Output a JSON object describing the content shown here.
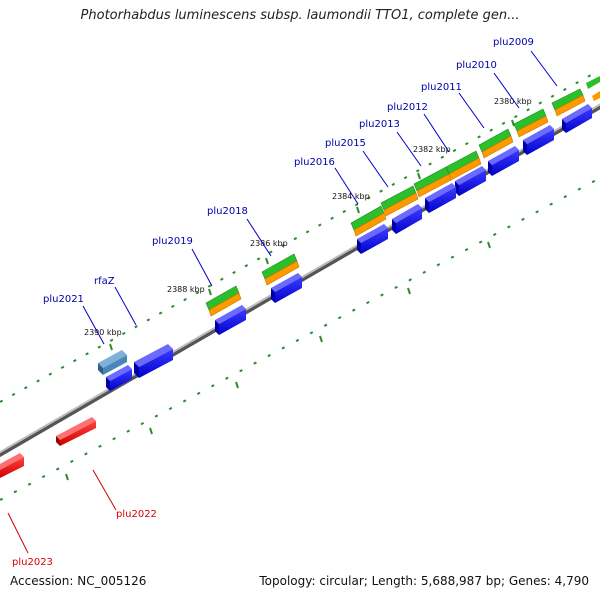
{
  "title": "Photorhabdus luminescens subsp. laumondii TTO1, complete gen...",
  "footer": {
    "accession": "Accession: NC_005126",
    "summary": "Topology: circular; Length: 5,688,987 bp; Genes: 4,790"
  },
  "colors": {
    "backbone": "#8a8a8a",
    "cds": "#0000ee",
    "gene_green": "#33cc33",
    "gene_orange": "#ff9900",
    "rna_steelblue": "#4a86b8",
    "reverse_red": "#ee0000",
    "forward_label": "#0000aa",
    "reverse_label": "#dd0000",
    "dots": "#2e8b2e"
  },
  "scale_labels": [
    {
      "text": "2380 kbp"
    },
    {
      "text": "2382 kbp"
    },
    {
      "text": "2384 kbp"
    },
    {
      "text": "2386 kbp"
    },
    {
      "text": "2388 kbp"
    },
    {
      "text": "2390 kbp"
    }
  ],
  "forward_genes": [
    {
      "name": "plu2009"
    },
    {
      "name": "plu2010"
    },
    {
      "name": "plu2011"
    },
    {
      "name": "plu2012"
    },
    {
      "name": "plu2013"
    },
    {
      "name": "plu2015"
    },
    {
      "name": "plu2016"
    },
    {
      "name": "plu2018"
    },
    {
      "name": "plu2019"
    },
    {
      "name": "rfaZ"
    },
    {
      "name": "plu2021"
    }
  ],
  "reverse_genes": [
    {
      "name": "plu2022"
    },
    {
      "name": "plu2023"
    }
  ]
}
